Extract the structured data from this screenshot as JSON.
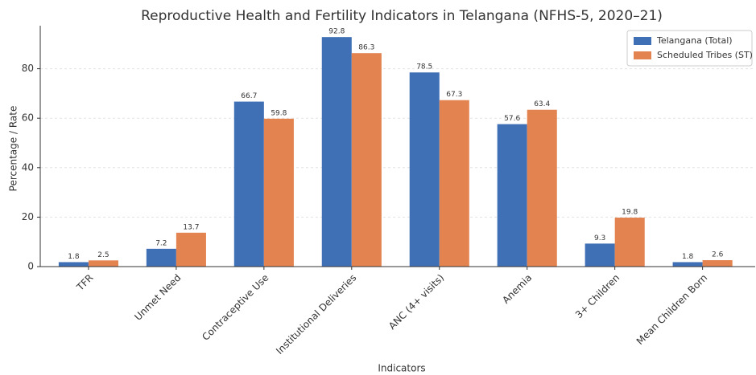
{
  "chart_data": {
    "type": "bar",
    "title": "Reproductive Health and Fertility Indicators in Telangana (NFHS-5, 2020–21)",
    "x_label": "Indicators",
    "y_label": "Percentage / Rate",
    "categories": [
      "TFR",
      "Unmet Need",
      "Contraceptive Use",
      "Institutional Deliveries",
      "ANC (4+ visits)",
      "Anemia",
      "3+ Children",
      "Mean Children Born"
    ],
    "series": [
      {
        "name": "Telangana (Total)",
        "color": "#3f6fb5",
        "values": [
          1.8,
          7.2,
          66.7,
          92.8,
          78.5,
          57.6,
          9.3,
          1.8
        ]
      },
      {
        "name": "Scheduled Tribes (ST)",
        "color": "#e3834f",
        "values": [
          2.5,
          13.7,
          59.8,
          86.3,
          67.3,
          63.4,
          19.8,
          2.6
        ]
      }
    ],
    "ylim": [
      0,
      97.4
    ],
    "yticks": [
      0,
      20,
      40,
      60,
      80
    ],
    "grid": true,
    "legend": "upper right"
  }
}
